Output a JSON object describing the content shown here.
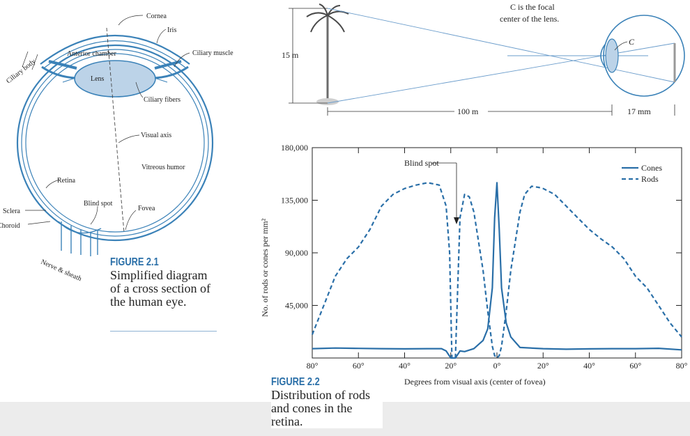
{
  "eye_diagram": {
    "labels": {
      "cornea": "Cornea",
      "iris": "Iris",
      "ciliary_body": "Ciliary body",
      "anterior_chamber": "Anterior chamber",
      "ciliary_muscle": "Ciliary muscle",
      "lens": "Lens",
      "ciliary_fibers": "Ciliary fibers",
      "visual_axis": "Visual axis",
      "vitreous_humor": "Vitreous humor",
      "retina": "Retina",
      "blind_spot": "Blind spot",
      "fovea": "Fovea",
      "sclera": "Sclera",
      "choroid": "Choroid",
      "nerve_sheath": "Nerve & sheath"
    },
    "figure_label": "FIGURE 2.1",
    "caption": "Simplified diagram of a cross section of the human eye."
  },
  "optics_diagram": {
    "note_line1": "C is the focal",
    "note_line2": "center of the lens.",
    "c_label": "C",
    "height_label": "15 m",
    "distance_label": "100 m",
    "focal_label": "17 mm"
  },
  "chart_data": {
    "type": "line",
    "xlabel": "Degrees from visual axis (center of fovea)",
    "ylabel": "No. of rods or cones per mm²",
    "x_tick_labels": [
      "80°",
      "60°",
      "40°",
      "20°",
      "0°",
      "20°",
      "40°",
      "60°",
      "80°"
    ],
    "x_ticks": [
      -80,
      -60,
      -40,
      -20,
      0,
      20,
      40,
      60,
      80
    ],
    "y_ticks": [
      45000,
      90000,
      135000,
      180000
    ],
    "y_tick_labels": [
      "45,000",
      "90,000",
      "135,000",
      "180,000"
    ],
    "xlim": [
      -80,
      80
    ],
    "ylim": [
      0,
      180000
    ],
    "annotation": "Blind spot",
    "legend": {
      "position": "top-right",
      "cones": "Cones",
      "rods": "Rods"
    },
    "series": [
      {
        "name": "Cones",
        "style": "solid",
        "x": [
          -80,
          -70,
          -60,
          -50,
          -40,
          -30,
          -24,
          -22,
          -20,
          -18,
          -16,
          -14,
          -10,
          -6,
          -4,
          -2,
          -1,
          0,
          1,
          2,
          4,
          6,
          10,
          20,
          30,
          40,
          50,
          60,
          70,
          80
        ],
        "y": [
          8000,
          8500,
          8200,
          8000,
          7800,
          8000,
          8000,
          6000,
          0,
          0,
          6000,
          5500,
          8000,
          15000,
          25000,
          60000,
          120000,
          150000,
          110000,
          60000,
          30000,
          18000,
          9000,
          8000,
          7500,
          7800,
          8000,
          8000,
          8300,
          7000
        ]
      },
      {
        "name": "Rods",
        "style": "dashed",
        "x": [
          -80,
          -75,
          -70,
          -65,
          -60,
          -55,
          -50,
          -45,
          -40,
          -35,
          -30,
          -25,
          -22,
          -20.5,
          -19.5,
          -18,
          -16,
          -14,
          -12,
          -10,
          -8,
          -6,
          -4,
          -2,
          -1,
          0,
          1,
          2,
          4,
          6,
          8,
          10,
          12,
          15,
          18,
          20,
          25,
          30,
          35,
          40,
          45,
          50,
          55,
          60,
          65,
          70,
          75,
          80
        ],
        "y": [
          20000,
          45000,
          70000,
          85000,
          95000,
          110000,
          130000,
          140000,
          145000,
          148000,
          150000,
          148000,
          130000,
          90000,
          0,
          0,
          120000,
          140000,
          138000,
          125000,
          100000,
          75000,
          40000,
          10000,
          2000,
          0,
          2000,
          10000,
          40000,
          75000,
          100000,
          125000,
          140000,
          147000,
          146000,
          145000,
          140000,
          130000,
          120000,
          110000,
          102000,
          95000,
          85000,
          70000,
          60000,
          45000,
          30000,
          18000
        ]
      }
    ],
    "figure_label": "FIGURE 2.2",
    "caption": "Distribution of rods and cones in the retina."
  }
}
